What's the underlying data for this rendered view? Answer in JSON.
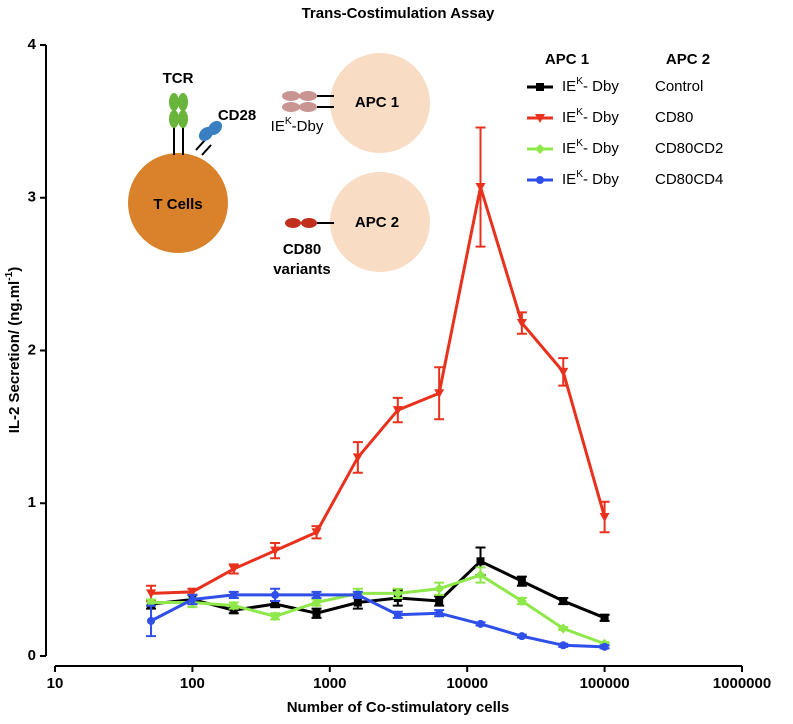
{
  "chart_data": {
    "type": "line",
    "title": "Trans-Costimulation Assay",
    "x_label": "Number of Co-stimulatory cells",
    "y_label": [
      {
        "text": "IL-2 Secretion/ (ng.ml"
      },
      {
        "text": "-1",
        "sup": true
      },
      {
        "text": ")"
      }
    ],
    "xscale": "log",
    "xlim": [
      10,
      1000000
    ],
    "xticks": [
      10,
      100,
      1000,
      10000,
      100000,
      1000000
    ],
    "ylim": [
      0,
      4
    ],
    "yticks": [
      0,
      1,
      2,
      3,
      4
    ],
    "grid": false,
    "legend_position": "top-right",
    "legend_headers": [
      "APC 1",
      "APC 2"
    ],
    "x": [
      50,
      100,
      200,
      400,
      800,
      1600,
      3125,
      6250,
      12500,
      25000,
      50000,
      100000
    ],
    "series": [
      {
        "name": "Control",
        "apc1": [
          {
            "text": "IE"
          },
          {
            "text": "K",
            "sup": true
          },
          {
            "text": "- Dby"
          }
        ],
        "color": "#000000",
        "marker": "square",
        "values": [
          0.34,
          0.37,
          0.3,
          0.34,
          0.28,
          0.35,
          0.38,
          0.36,
          0.62,
          0.49,
          0.36,
          0.25
        ],
        "errors": [
          0.03,
          0.03,
          0.02,
          0.02,
          0.03,
          0.04,
          0.05,
          0.03,
          0.09,
          0.03,
          0.02,
          0.02
        ]
      },
      {
        "name": "CD80",
        "apc1": [
          {
            "text": "IE"
          },
          {
            "text": "K",
            "sup": true
          },
          {
            "text": "- Dby"
          }
        ],
        "color": "#e8321e",
        "marker": "triangle-down",
        "values": [
          0.41,
          0.42,
          0.57,
          0.69,
          0.81,
          1.3,
          1.61,
          1.72,
          3.07,
          2.18,
          1.86,
          0.91
        ],
        "errors": [
          0.05,
          0.02,
          0.03,
          0.05,
          0.04,
          0.1,
          0.08,
          0.17,
          0.39,
          0.07,
          0.09,
          0.1
        ]
      },
      {
        "name": "CD80CD2",
        "apc1": [
          {
            "text": "IE"
          },
          {
            "text": "K",
            "sup": true
          },
          {
            "text": "- Dby"
          }
        ],
        "color": "#8ee84a",
        "marker": "diamond",
        "values": [
          0.35,
          0.35,
          0.33,
          0.26,
          0.35,
          0.41,
          0.41,
          0.44,
          0.53,
          0.36,
          0.18,
          0.08
        ],
        "errors": [
          0.02,
          0.03,
          0.02,
          0.02,
          0.02,
          0.03,
          0.03,
          0.04,
          0.05,
          0.02,
          0.01,
          0.01
        ]
      },
      {
        "name": "CD80CD4",
        "apc1": [
          {
            "text": "IE"
          },
          {
            "text": "K",
            "sup": true
          },
          {
            "text": "- Dby"
          }
        ],
        "color": "#2f4fe8",
        "marker": "circle",
        "values": [
          0.23,
          0.37,
          0.4,
          0.4,
          0.4,
          0.4,
          0.27,
          0.28,
          0.21,
          0.13,
          0.07,
          0.06
        ],
        "errors": [
          0.1,
          0.03,
          0.02,
          0.04,
          0.02,
          0.02,
          0.02,
          0.02,
          0.01,
          0.01,
          0.01,
          0.01
        ]
      }
    ],
    "diagram": {
      "tcr": "TCR",
      "cd28": "CD28",
      "t_cells": "T Cells",
      "apc1": "APC 1",
      "apc2": "APC 2",
      "iek": [
        {
          "text": "IE"
        },
        {
          "text": "K",
          "sup": true
        },
        {
          "text": "-Dby"
        }
      ],
      "cd80": "CD80",
      "variants": "variants"
    }
  }
}
